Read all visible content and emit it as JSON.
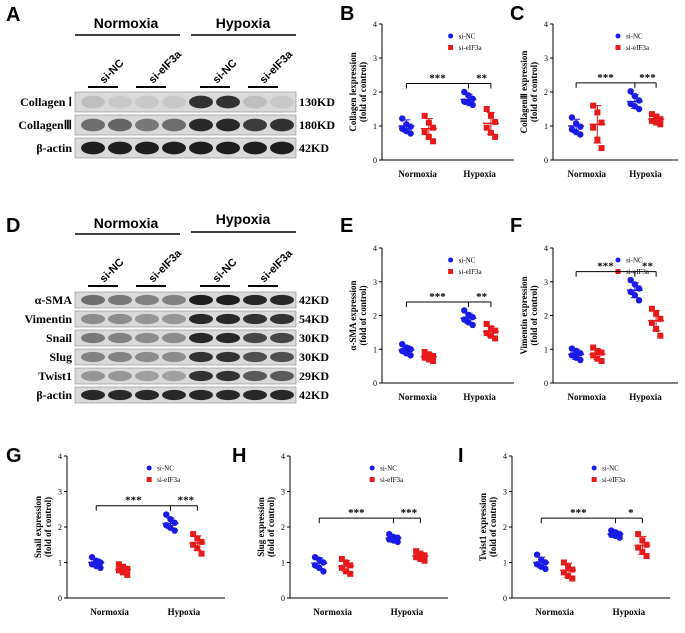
{
  "figure": {
    "labels": {
      "A": "A",
      "B": "B",
      "C": "C",
      "D": "D",
      "E": "E",
      "F": "F",
      "G": "G",
      "H": "H",
      "I": "I"
    },
    "blotA": {
      "groups": [
        "Normoxia",
        "Hypoxia"
      ],
      "lanes": [
        "si-NC",
        "si-eIF3a",
        "si-NC",
        "si-eIF3a"
      ],
      "rows": [
        {
          "label": "Collagen Ⅰ",
          "kd": "130KD"
        },
        {
          "label": "CollagenⅢ",
          "kd": "180KD"
        },
        {
          "label": "β-actin",
          "kd": "42KD"
        }
      ]
    },
    "blotD": {
      "groups": [
        "Normoxia",
        "Hypoxia"
      ],
      "lanes": [
        "si-NC",
        "si-eIF3a",
        "si-NC",
        "si-eIF3a"
      ],
      "rows": [
        {
          "label": "α-SMA",
          "kd": "42KD"
        },
        {
          "label": "Vimentin",
          "kd": "54KD"
        },
        {
          "label": "Snail",
          "kd": "30KD"
        },
        {
          "label": "Slug",
          "kd": "30KD"
        },
        {
          "label": "Twist1",
          "kd": "29KD"
        },
        {
          "label": "β-actin",
          "kd": "42KD"
        }
      ]
    }
  },
  "colors": {
    "si_nc": "#1a1ae6",
    "si_eif3a": "#e61a1a"
  },
  "chart_data": [
    {
      "id": "B",
      "type": "scatter",
      "ylabel": "Collagen Ⅰexpression",
      "ylabel2": "(fold of control)",
      "xlabel": "",
      "ylim": [
        0,
        4
      ],
      "yticks": [
        "0",
        "1",
        "2",
        "3",
        "4"
      ],
      "categories": [
        "Normoxia",
        "Hypoxia"
      ],
      "legend": [
        "si-NC",
        "si-eIF3a"
      ],
      "sig": [
        "***",
        "**"
      ],
      "series": [
        {
          "name": "si-NC",
          "group": "Normoxia",
          "mean": 1.0,
          "sd": 0.18,
          "points": [
            1.22,
            1.05,
            0.98,
            0.92,
            0.85,
            0.78
          ]
        },
        {
          "name": "si-eIF3a",
          "group": "Normoxia",
          "mean": 0.92,
          "sd": 0.3,
          "points": [
            1.3,
            1.1,
            0.95,
            0.82,
            0.68,
            0.55
          ]
        },
        {
          "name": "si-NC",
          "group": "Hypoxia",
          "mean": 1.78,
          "sd": 0.15,
          "points": [
            2.0,
            1.9,
            1.8,
            1.72,
            1.68,
            1.62
          ]
        },
        {
          "name": "si-eIF3a",
          "group": "Hypoxia",
          "mean": 1.08,
          "sd": 0.32,
          "points": [
            1.5,
            1.3,
            1.12,
            0.95,
            0.8,
            0.68
          ]
        }
      ]
    },
    {
      "id": "C",
      "type": "scatter",
      "ylabel": "CollagenⅢ expression",
      "ylabel2": "(fold of control)",
      "xlabel": "",
      "ylim": [
        0,
        4
      ],
      "yticks": [
        "0",
        "1",
        "2",
        "3",
        "4"
      ],
      "categories": [
        "Normoxia",
        "Hypoxia"
      ],
      "legend": [
        "si-NC",
        "si-eIF3a"
      ],
      "sig": [
        "***",
        "***"
      ],
      "series": [
        {
          "name": "si-NC",
          "group": "Normoxia",
          "mean": 1.0,
          "sd": 0.2,
          "points": [
            1.25,
            1.08,
            0.98,
            0.9,
            0.82,
            0.75
          ]
        },
        {
          "name": "si-eIF3a",
          "group": "Normoxia",
          "mean": 1.05,
          "sd": 0.55,
          "points": [
            1.6,
            1.4,
            1.1,
            0.95,
            0.6,
            0.35
          ]
        },
        {
          "name": "si-NC",
          "group": "Hypoxia",
          "mean": 1.72,
          "sd": 0.2,
          "points": [
            2.02,
            1.88,
            1.75,
            1.65,
            1.58,
            1.5
          ]
        },
        {
          "name": "si-eIF3a",
          "group": "Hypoxia",
          "mean": 1.2,
          "sd": 0.12,
          "points": [
            1.35,
            1.28,
            1.2,
            1.15,
            1.1,
            1.05
          ]
        }
      ]
    },
    {
      "id": "E",
      "type": "scatter",
      "ylabel": "α-SMA expression",
      "ylabel2": "(fold of control)",
      "xlabel": "",
      "ylim": [
        0,
        4
      ],
      "yticks": [
        "0",
        "1",
        "2",
        "3",
        "4"
      ],
      "categories": [
        "Normoxia",
        "Hypoxia"
      ],
      "legend": [
        "si-NC",
        "si-eIF3a"
      ],
      "sig": [
        "***",
        "**"
      ],
      "series": [
        {
          "name": "si-NC",
          "group": "Normoxia",
          "mean": 0.98,
          "sd": 0.12,
          "points": [
            1.15,
            1.05,
            1.0,
            0.95,
            0.88,
            0.82
          ]
        },
        {
          "name": "si-eIF3a",
          "group": "Normoxia",
          "mean": 0.78,
          "sd": 0.1,
          "points": [
            0.92,
            0.85,
            0.8,
            0.75,
            0.7,
            0.65
          ]
        },
        {
          "name": "si-NC",
          "group": "Hypoxia",
          "mean": 1.92,
          "sd": 0.15,
          "points": [
            2.15,
            2.02,
            1.95,
            1.88,
            1.8,
            1.72
          ]
        },
        {
          "name": "si-eIF3a",
          "group": "Hypoxia",
          "mean": 1.52,
          "sd": 0.15,
          "points": [
            1.75,
            1.62,
            1.55,
            1.48,
            1.4,
            1.32
          ]
        }
      ]
    },
    {
      "id": "F",
      "type": "scatter",
      "ylabel": "Vimentin expression",
      "ylabel2": "(fold of control)",
      "xlabel": "",
      "ylim": [
        0,
        4
      ],
      "yticks": [
        "0",
        "1",
        "2",
        "3",
        "4"
      ],
      "categories": [
        "Normoxia",
        "Hypoxia"
      ],
      "legend": [
        "si-NC",
        "si-eIF3a"
      ],
      "sig": [
        "***",
        "**"
      ],
      "series": [
        {
          "name": "si-NC",
          "group": "Normoxia",
          "mean": 0.85,
          "sd": 0.15,
          "points": [
            1.02,
            0.95,
            0.88,
            0.82,
            0.75,
            0.68
          ]
        },
        {
          "name": "si-eIF3a",
          "group": "Normoxia",
          "mean": 0.85,
          "sd": 0.15,
          "points": [
            1.05,
            0.95,
            0.9,
            0.82,
            0.72,
            0.65
          ]
        },
        {
          "name": "si-NC",
          "group": "Hypoxia",
          "mean": 2.75,
          "sd": 0.22,
          "points": [
            3.05,
            2.92,
            2.8,
            2.7,
            2.6,
            2.45
          ]
        },
        {
          "name": "si-eIF3a",
          "group": "Hypoxia",
          "mean": 1.85,
          "sd": 0.3,
          "points": [
            2.2,
            2.05,
            1.9,
            1.78,
            1.6,
            1.4
          ]
        }
      ]
    },
    {
      "id": "G",
      "type": "scatter",
      "ylabel": "Snail expression",
      "ylabel2": "(fold of control)",
      "xlabel": "",
      "ylim": [
        0,
        4
      ],
      "yticks": [
        "0",
        "1",
        "2",
        "3",
        "4"
      ],
      "categories": [
        "Normoxia",
        "Hypoxia"
      ],
      "legend": [
        "si-NC",
        "si-eIF3a"
      ],
      "sig": [
        "***",
        "***"
      ],
      "series": [
        {
          "name": "si-NC",
          "group": "Normoxia",
          "mean": 1.0,
          "sd": 0.1,
          "points": [
            1.15,
            1.05,
            1.0,
            0.95,
            0.9,
            0.85
          ]
        },
        {
          "name": "si-eIF3a",
          "group": "Normoxia",
          "mean": 0.8,
          "sd": 0.1,
          "points": [
            0.95,
            0.88,
            0.82,
            0.78,
            0.72,
            0.65
          ]
        },
        {
          "name": "si-NC",
          "group": "Hypoxia",
          "mean": 2.1,
          "sd": 0.15,
          "points": [
            2.35,
            2.22,
            2.12,
            2.05,
            1.98,
            1.9
          ]
        },
        {
          "name": "si-eIF3a",
          "group": "Hypoxia",
          "mean": 1.55,
          "sd": 0.2,
          "points": [
            1.8,
            1.68,
            1.58,
            1.5,
            1.4,
            1.25
          ]
        }
      ]
    },
    {
      "id": "H",
      "type": "scatter",
      "ylabel": "Slug expression",
      "ylabel2": "(fold of control)",
      "xlabel": "",
      "ylim": [
        0,
        4
      ],
      "yticks": [
        "0",
        "1",
        "2",
        "3",
        "4"
      ],
      "categories": [
        "Normoxia",
        "Hypoxia"
      ],
      "legend": [
        "si-NC",
        "si-eIF3a"
      ],
      "sig": [
        "***",
        "***"
      ],
      "series": [
        {
          "name": "si-NC",
          "group": "Normoxia",
          "mean": 0.98,
          "sd": 0.15,
          "points": [
            1.15,
            1.08,
            1.0,
            0.92,
            0.85,
            0.75
          ]
        },
        {
          "name": "si-eIF3a",
          "group": "Normoxia",
          "mean": 0.9,
          "sd": 0.15,
          "points": [
            1.1,
            1.0,
            0.92,
            0.85,
            0.75,
            0.68
          ]
        },
        {
          "name": "si-NC",
          "group": "Hypoxia",
          "mean": 1.68,
          "sd": 0.08,
          "points": [
            1.8,
            1.72,
            1.7,
            1.65,
            1.62,
            1.58
          ]
        },
        {
          "name": "si-eIF3a",
          "group": "Hypoxia",
          "mean": 1.18,
          "sd": 0.1,
          "points": [
            1.32,
            1.25,
            1.2,
            1.15,
            1.1,
            1.05
          ]
        }
      ]
    },
    {
      "id": "I",
      "type": "scatter",
      "ylabel": "Twist1 expression",
      "ylabel2": "(fold of control)",
      "xlabel": "",
      "ylim": [
        0,
        4
      ],
      "yticks": [
        "0",
        "1",
        "2",
        "3",
        "4"
      ],
      "categories": [
        "Normoxia",
        "Hypoxia"
      ],
      "legend": [
        "si-NC",
        "si-eIF3a"
      ],
      "sig": [
        "***",
        "*"
      ],
      "series": [
        {
          "name": "si-NC",
          "group": "Normoxia",
          "mean": 1.0,
          "sd": 0.15,
          "points": [
            1.22,
            1.08,
            1.0,
            0.95,
            0.88,
            0.82
          ]
        },
        {
          "name": "si-eIF3a",
          "group": "Normoxia",
          "mean": 0.78,
          "sd": 0.2,
          "points": [
            1.0,
            0.88,
            0.8,
            0.72,
            0.62,
            0.55
          ]
        },
        {
          "name": "si-NC",
          "group": "Hypoxia",
          "mean": 1.8,
          "sd": 0.08,
          "points": [
            1.9,
            1.85,
            1.8,
            1.78,
            1.75,
            1.7
          ]
        },
        {
          "name": "si-eIF3a",
          "group": "Hypoxia",
          "mean": 1.48,
          "sd": 0.25,
          "points": [
            1.8,
            1.62,
            1.5,
            1.42,
            1.3,
            1.18
          ]
        }
      ]
    }
  ]
}
